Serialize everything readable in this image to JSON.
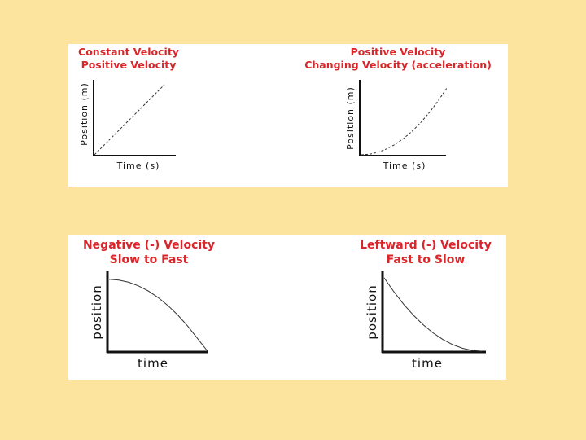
{
  "colors": {
    "background": "#fde49e",
    "panel": "#ffffff",
    "title": "#d9262b",
    "axis": "#111111",
    "curve": "#333333"
  },
  "chart_data": [
    {
      "type": "line",
      "title_line1": "Constant Velocity",
      "title_line2": "Positive Velocity",
      "xlabel": "Time (s)",
      "ylabel": "Position (m)",
      "xlim": [
        0,
        1
      ],
      "ylim": [
        0,
        1
      ],
      "series": [
        {
          "line": "dashed",
          "x": [
            0,
            0.2,
            0.4,
            0.6,
            0.8,
            1.0
          ],
          "y": [
            0,
            0.2,
            0.4,
            0.6,
            0.8,
            1.0
          ]
        }
      ]
    },
    {
      "type": "line",
      "title_line1": "Positive Velocity",
      "title_line2": "Changing Velocity (acceleration)",
      "xlabel": "Time (s)",
      "ylabel": "Position (m)",
      "xlim": [
        0,
        1
      ],
      "ylim": [
        0,
        1
      ],
      "series": [
        {
          "line": "dashed",
          "x": [
            0,
            0.1,
            0.2,
            0.3,
            0.4,
            0.5,
            0.6,
            0.7,
            0.8,
            0.9,
            1.0
          ],
          "y": [
            0,
            0.01,
            0.04,
            0.09,
            0.16,
            0.25,
            0.36,
            0.49,
            0.64,
            0.81,
            1.0
          ]
        }
      ]
    },
    {
      "type": "line",
      "title_line1": "Negative (-) Velocity",
      "title_line2": "Slow to Fast",
      "xlabel": "time",
      "ylabel": "position",
      "xlim": [
        0,
        1
      ],
      "ylim": [
        0,
        1
      ],
      "series": [
        {
          "line": "solid",
          "x": [
            0,
            0.1,
            0.2,
            0.3,
            0.4,
            0.5,
            0.6,
            0.7,
            0.8,
            0.9,
            1.0
          ],
          "y": [
            0.98,
            0.97,
            0.94,
            0.89,
            0.82,
            0.73,
            0.62,
            0.49,
            0.34,
            0.17,
            0.0
          ]
        }
      ]
    },
    {
      "type": "line",
      "title_line1": "Leftward (-) Velocity",
      "title_line2": "Fast to Slow",
      "xlabel": "time",
      "ylabel": "position",
      "xlim": [
        0,
        1
      ],
      "ylim": [
        0,
        1
      ],
      "series": [
        {
          "line": "solid",
          "x": [
            0,
            0.1,
            0.2,
            0.3,
            0.4,
            0.5,
            0.6,
            0.7,
            0.8,
            0.9,
            1.0
          ],
          "y": [
            1.0,
            0.81,
            0.64,
            0.49,
            0.36,
            0.25,
            0.16,
            0.09,
            0.04,
            0.01,
            0.0
          ]
        }
      ]
    }
  ]
}
